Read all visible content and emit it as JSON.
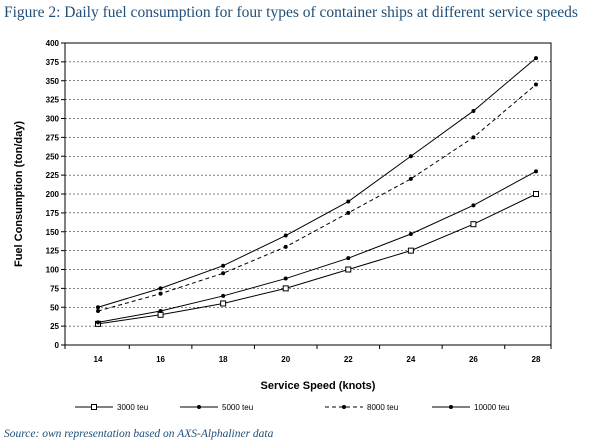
{
  "figure": {
    "title": "Figure 2: Daily fuel consumption for four types of container ships at different service speeds",
    "source": "Source: own representation based on AXS-Alphaliner data"
  },
  "chart_data": {
    "type": "line",
    "title": "",
    "xlabel": "Service Speed (knots)",
    "ylabel": "Fuel Consumption (ton/day)",
    "x": [
      14,
      16,
      18,
      20,
      22,
      24,
      26,
      28
    ],
    "xlim": [
      14,
      28
    ],
    "ylim": [
      0,
      400
    ],
    "y_ticks": [
      0,
      25,
      50,
      75,
      100,
      125,
      150,
      175,
      200,
      225,
      250,
      275,
      300,
      325,
      350,
      375,
      400
    ],
    "grid": "horizontal dashed",
    "legend_position": "bottom",
    "series": [
      {
        "name": "3000 teu",
        "values": [
          28,
          40,
          55,
          75,
          100,
          125,
          160,
          200
        ],
        "marker": "open-square",
        "line": "solid",
        "color": "#000000"
      },
      {
        "name": "5000 teu",
        "values": [
          30,
          45,
          65,
          88,
          115,
          147,
          185,
          230
        ],
        "marker": "dot",
        "line": "solid",
        "color": "#000000"
      },
      {
        "name": "8000 teu",
        "values": [
          45,
          68,
          95,
          130,
          175,
          220,
          275,
          345
        ],
        "marker": "dot",
        "line": "dashed",
        "color": "#000000"
      },
      {
        "name": "10000 teu",
        "values": [
          50,
          75,
          105,
          145,
          190,
          250,
          310,
          380
        ],
        "marker": "dot",
        "line": "solid",
        "color": "#000000"
      }
    ]
  }
}
